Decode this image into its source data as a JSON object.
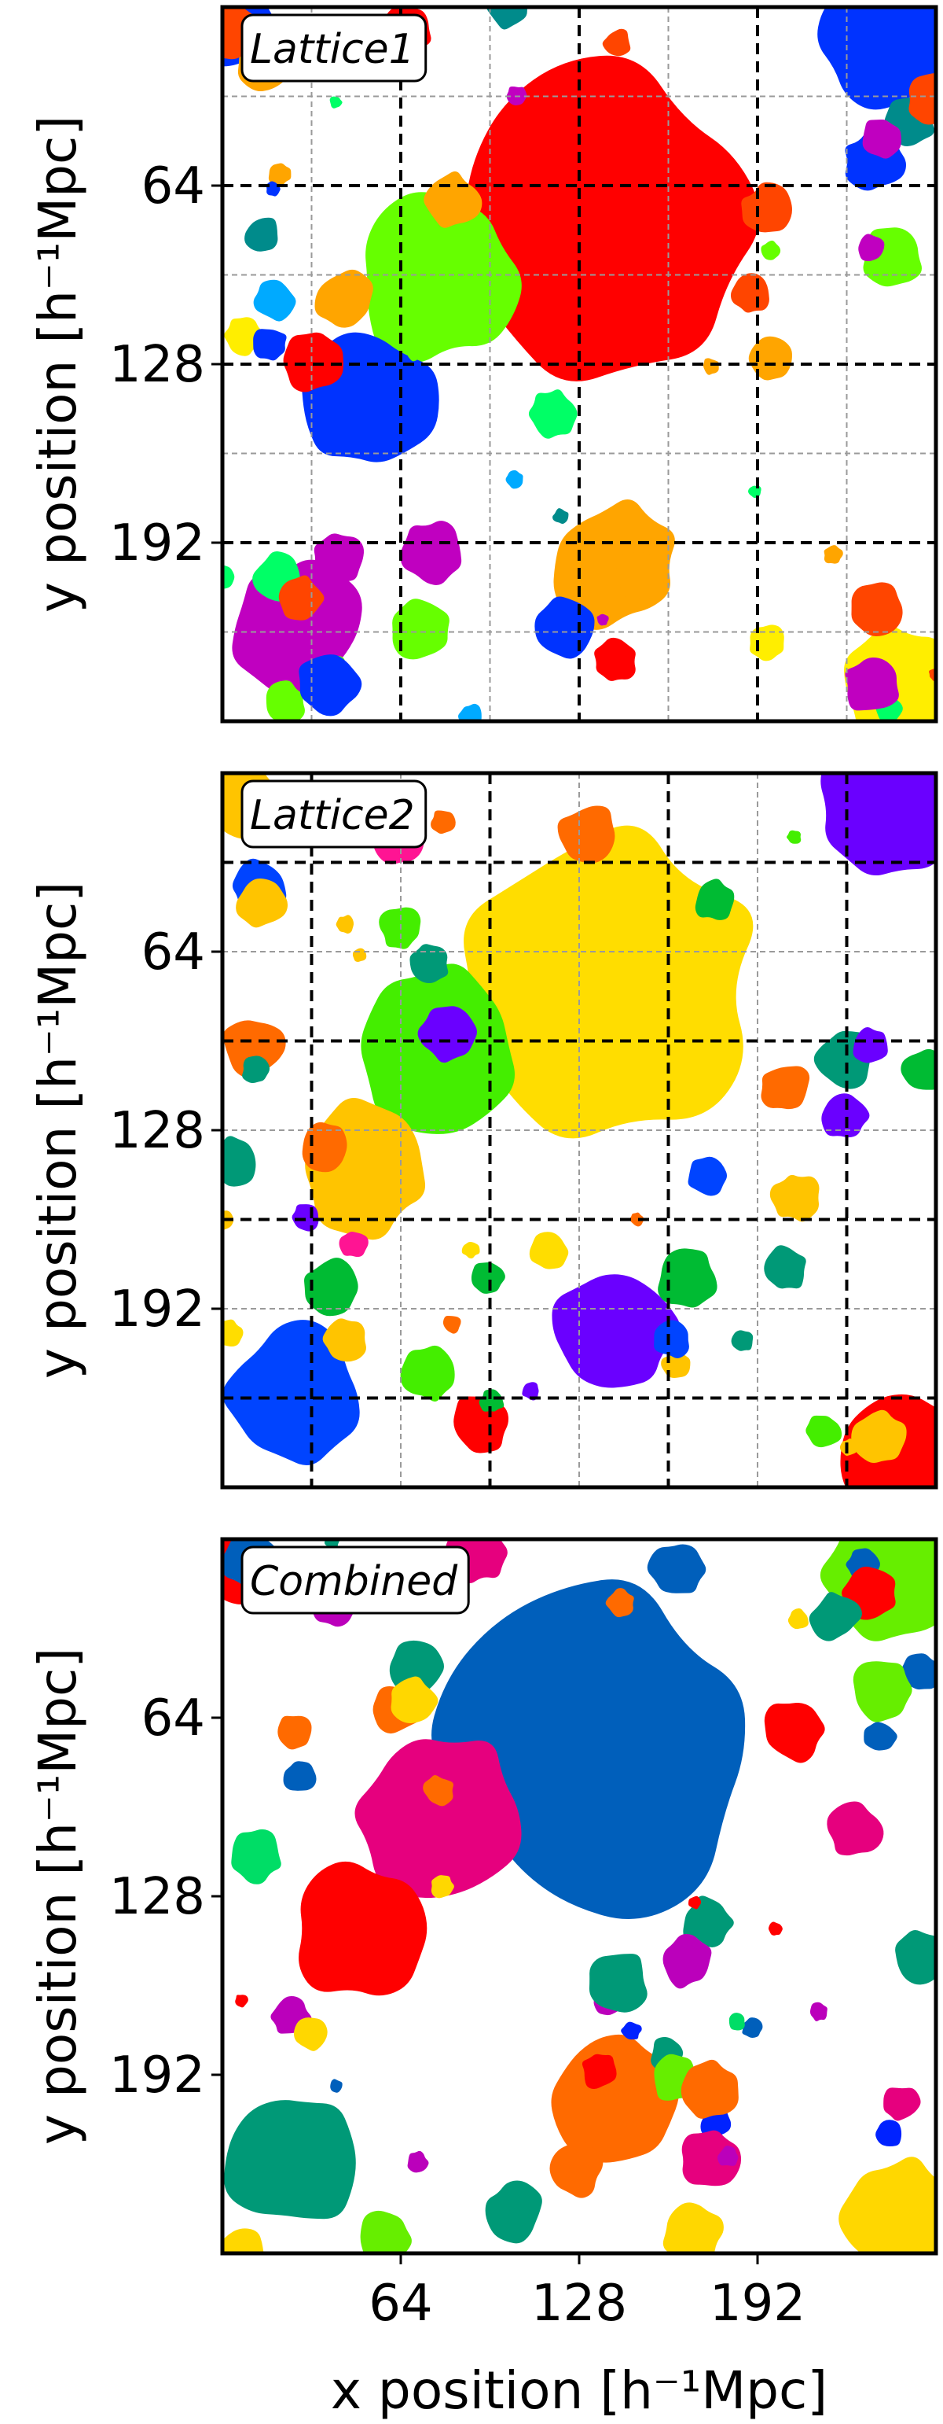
{
  "figure": {
    "xlabel": "x position [h⁻¹Mpc]",
    "ylabel": "y position [h⁻¹Mpc]"
  },
  "chart_data": [
    {
      "type": "heatmap",
      "title": "Lattice1",
      "xlim": [
        0,
        256
      ],
      "ylim": [
        256,
        0
      ],
      "yticks": [
        "64",
        "128",
        "192"
      ],
      "xticks": [],
      "lattice_lines_dashed_black": [
        64,
        128,
        192
      ],
      "sublattice_lines_dashed_gray": [
        32,
        96,
        160,
        224
      ],
      "region_colors": [
        "#ff0000",
        "#66ff00",
        "#0033ff",
        "#ffa500",
        "#ff4500",
        "#ffee00",
        "#00ff66",
        "#008b8b",
        "#c000c0",
        "#00aaff"
      ]
    },
    {
      "type": "heatmap",
      "title": "Lattice2",
      "xlim": [
        0,
        256
      ],
      "ylim": [
        256,
        0
      ],
      "yticks": [
        "64",
        "128",
        "192"
      ],
      "xticks": [],
      "lattice_lines_dashed_black": [
        32,
        96,
        160,
        224
      ],
      "sublattice_lines_dashed_gray": [
        64,
        128,
        192
      ],
      "region_colors": [
        "#ffdd00",
        "#44ee00",
        "#ffc400",
        "#6a00ff",
        "#00bb33",
        "#009977",
        "#ff0000",
        "#ff6a00",
        "#0044ff",
        "#ff1493"
      ]
    },
    {
      "type": "heatmap",
      "title": "Combined",
      "xlim": [
        0,
        256
      ],
      "ylim": [
        256,
        0
      ],
      "yticks": [
        "64",
        "128",
        "192"
      ],
      "xticks": [
        "64",
        "128",
        "192"
      ],
      "region_colors": [
        "#005fbb",
        "#e6007e",
        "#ff0000",
        "#ff6a00",
        "#66ee00",
        "#00dd66",
        "#0022ff",
        "#ffd700",
        "#009977",
        "#bb00bb"
      ]
    }
  ]
}
